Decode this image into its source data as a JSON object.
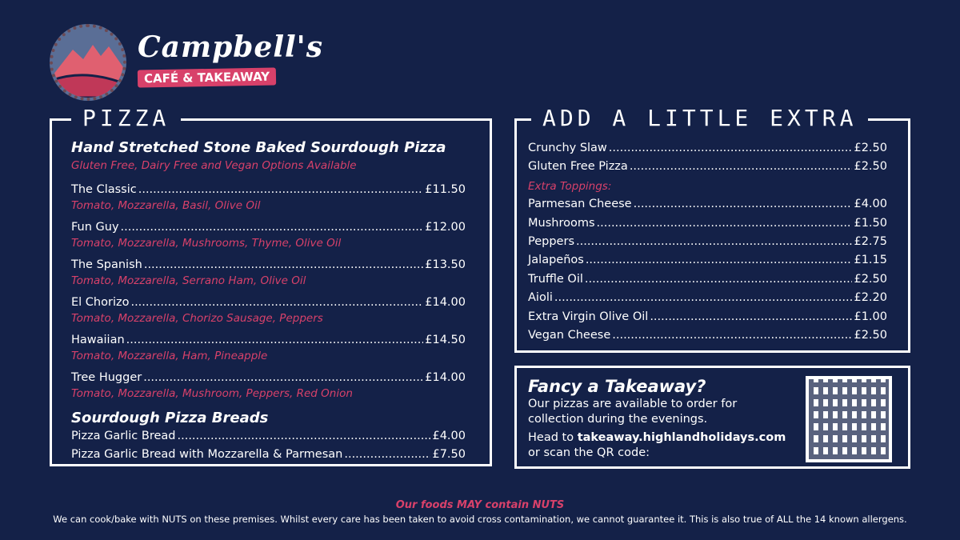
{
  "brand": {
    "name": "Campbell's",
    "tagline": "CAFÉ & TAKEAWAY"
  },
  "pizza": {
    "title": "PIZZA",
    "heading": "Hand Stretched Stone Baked Sourdough Pizza",
    "subheading": "Gluten Free, Dairy Free and Vegan Options Available",
    "items": [
      {
        "name": "The Classic",
        "price": "£11.50",
        "desc": "Tomato, Mozzarella, Basil, Olive Oil"
      },
      {
        "name": "Fun Guy",
        "price": "£12.00",
        "desc": "Tomato, Mozzarella, Mushrooms, Thyme, Olive Oil"
      },
      {
        "name": "The Spanish",
        "price": "£13.50",
        "desc": "Tomato, Mozzarella, Serrano Ham, Olive Oil"
      },
      {
        "name": "El Chorizo",
        "price": "£14.00",
        "desc": "Tomato, Mozzarella, Chorizo Sausage, Peppers"
      },
      {
        "name": "Hawaiian",
        "price": "£14.50",
        "desc": "Tomato, Mozzarella, Ham, Pineapple"
      },
      {
        "name": "Tree Hugger",
        "price": "£14.00",
        "desc": "Tomato, Mozzarella, Mushroom, Peppers, Red Onion"
      }
    ],
    "breads_heading": "Sourdough Pizza Breads",
    "breads": [
      {
        "name": "Pizza Garlic Bread",
        "price": "£4.00"
      },
      {
        "name": "Pizza Garlic Bread with Mozzarella & Parmesan",
        "price": "£7.50"
      }
    ]
  },
  "extra": {
    "title": "ADD A LITTLE EXTRA",
    "items": [
      {
        "name": "Crunchy Slaw",
        "price": "£2.50"
      },
      {
        "name": "Gluten Free Pizza",
        "price": "£2.50"
      }
    ],
    "toppings_label": "Extra Toppings:",
    "toppings": [
      {
        "name": "Parmesan Cheese",
        "price": "£4.00"
      },
      {
        "name": "Mushrooms",
        "price": "£1.50"
      },
      {
        "name": "Peppers",
        "price": "£2.75"
      },
      {
        "name": "Jalapeños",
        "price": "£1.15"
      },
      {
        "name": "Truffle Oil",
        "price": "£2.50"
      },
      {
        "name": "Aioli",
        "price": "£2.20"
      },
      {
        "name": "Extra Virgin Olive Oil",
        "price": "£1.00"
      },
      {
        "name": "Vegan Cheese",
        "price": "£2.50"
      }
    ]
  },
  "takeaway": {
    "heading": "Fancy a Takeaway?",
    "line1": "Our pizzas are available to order for",
    "line2": "collection during the evenings.",
    "head_to": "Head to ",
    "url": "takeaway.highlandholidays.com",
    "line4": "or scan the QR code:"
  },
  "footer": {
    "warning": "Our foods MAY contain NUTS",
    "text": "We can cook/bake with NUTS on these premises. Whilst every care has been taken to avoid cross contamination, we cannot guarantee it. This is also true of ALL the 14 known allergens."
  },
  "colors": {
    "background": "#142148",
    "accent": "#d8416a"
  }
}
